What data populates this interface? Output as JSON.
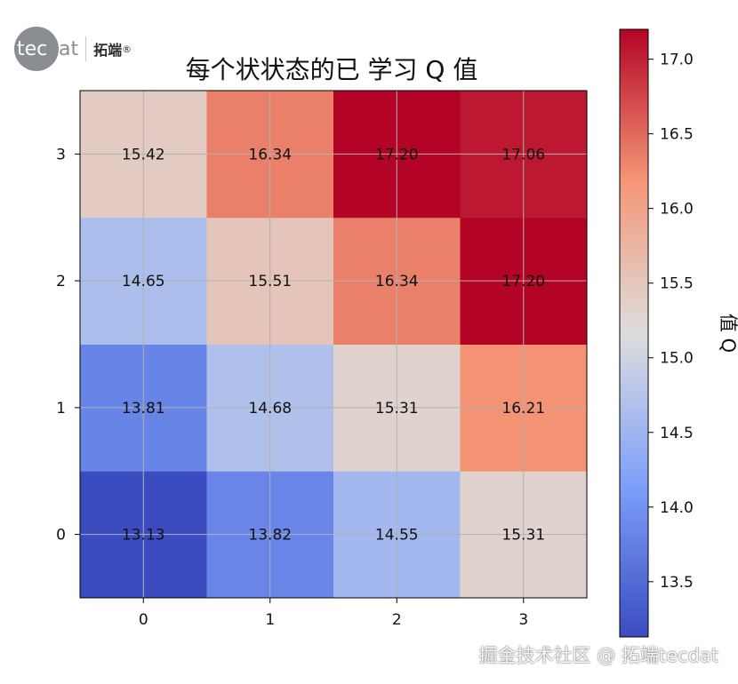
{
  "logo": {
    "mark": "tec",
    "rest": "dat",
    "cn": "拓端",
    "reg": "®"
  },
  "watermark": "掘金技术社区 @ 拓端tecdat",
  "chart_data": {
    "type": "heatmap",
    "title": "每个状状态的已   学习 Q 值",
    "x_ticks": [
      "0",
      "1",
      "2",
      "3"
    ],
    "y_ticks": [
      "0",
      "1",
      "2",
      "3"
    ],
    "values": [
      [
        13.13,
        13.82,
        14.55,
        15.31
      ],
      [
        13.81,
        14.68,
        15.31,
        16.21
      ],
      [
        14.65,
        15.51,
        16.34,
        17.2
      ],
      [
        15.42,
        16.34,
        17.2,
        17.06
      ]
    ],
    "labels": [
      [
        "13.13",
        "13.82",
        "14.55",
        "15.31"
      ],
      [
        "13.81",
        "14.68",
        "15.31",
        "16.21"
      ],
      [
        "14.65",
        "15.51",
        "16.34",
        "17.20"
      ],
      [
        "15.42",
        "16.34",
        "17.20",
        "17.06"
      ]
    ],
    "colormap": "coolwarm",
    "color_range": [
      13.13,
      17.2
    ],
    "colorbar": {
      "label": "值 Q",
      "ticks": [
        13.5,
        14.0,
        14.5,
        15.0,
        15.5,
        16.0,
        16.5,
        17.0
      ],
      "tick_labels": [
        "13.5",
        "14.0",
        "14.5",
        "15.0",
        "15.5",
        "16.0",
        "16.5",
        "17.0"
      ]
    },
    "grid": true,
    "origin": "lower"
  }
}
